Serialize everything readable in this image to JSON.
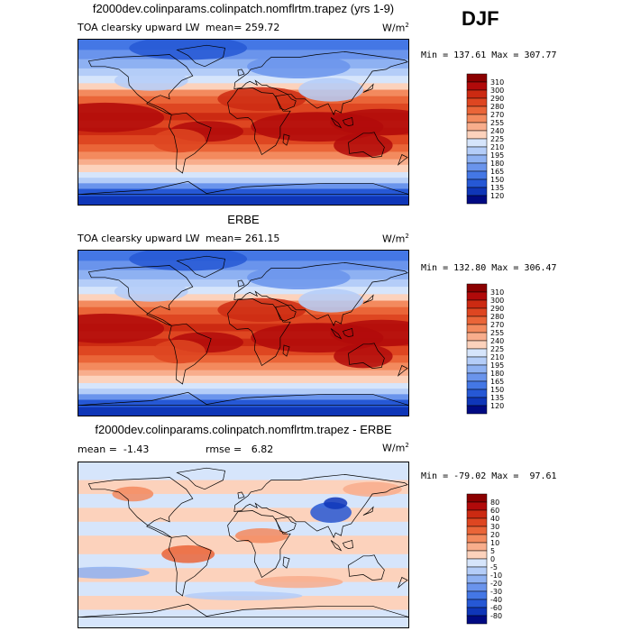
{
  "season": "DJF",
  "colors": {
    "warm": [
      "#8b0000",
      "#b10a0a",
      "#cc2a12",
      "#de4621",
      "#ea6538",
      "#f38a5e",
      "#f8ad8c",
      "#fcd2bc"
    ],
    "neutral": "#ffffff",
    "cool": [
      "#d6e5fb",
      "#b4cdf8",
      "#8eb1f2",
      "#6a94ec",
      "#4477e5",
      "#2658d5",
      "#0f36b8",
      "#000a83"
    ]
  },
  "panels": [
    {
      "title": "f2000dev.colinparams.colinpatch.nomflrtm.trapez (yrs 1-9)",
      "field": "TOA clearsky upward LW",
      "stat1_label": "mean=",
      "stat1_value": "259.72",
      "units": "W/m",
      "units_exp": "2",
      "min_label": "Min =",
      "min_value": "137.61",
      "max_label": "Max =",
      "max_value": "307.77",
      "colorbar": [
        "310",
        "300",
        "290",
        "280",
        "270",
        "255",
        "240",
        "225",
        "210",
        "195",
        "180",
        "165",
        "150",
        "135",
        "120"
      ],
      "map_type": "abs"
    },
    {
      "title": "ERBE",
      "field": "TOA clearsky upward LW",
      "stat1_label": "mean=",
      "stat1_value": "261.15",
      "units": "W/m",
      "units_exp": "2",
      "min_label": "Min =",
      "min_value": "132.80",
      "max_label": "Max =",
      "max_value": "306.47",
      "colorbar": [
        "310",
        "300",
        "290",
        "280",
        "270",
        "255",
        "240",
        "225",
        "210",
        "195",
        "180",
        "165",
        "150",
        "135",
        "120"
      ],
      "map_type": "abs"
    },
    {
      "title": "f2000dev.colinparams.colinpatch.nomflrtm.trapez - ERBE",
      "field": "",
      "stat1_label": "mean =",
      "stat1_value": "-1.43",
      "stat2_label": "rmse =",
      "stat2_value": "6.82",
      "units": "W/m",
      "units_exp": "2",
      "min_label": "Min =",
      "min_value": "-79.02",
      "max_label": "Max =",
      "max_value": "97.61",
      "colorbar": [
        "80",
        "60",
        "40",
        "30",
        "20",
        "10",
        "5",
        "0",
        "-5",
        "-10",
        "-20",
        "-30",
        "-40",
        "-60",
        "-80"
      ],
      "map_type": "diff"
    }
  ],
  "chart_data": [
    {
      "type": "heatmap",
      "title": "f2000dev.colinparams.colinpatch.nomflrtm.trapez (yrs 1-9)",
      "variable": "TOA clearsky upward LW",
      "units": "W/m2",
      "season": "DJF",
      "mean": 259.72,
      "min": 137.61,
      "max": 307.77,
      "levels": [
        120,
        135,
        150,
        165,
        180,
        195,
        210,
        225,
        240,
        255,
        270,
        280,
        290,
        300,
        310
      ]
    },
    {
      "type": "heatmap",
      "title": "ERBE",
      "variable": "TOA clearsky upward LW",
      "units": "W/m2",
      "season": "DJF",
      "mean": 261.15,
      "min": 132.8,
      "max": 306.47,
      "levels": [
        120,
        135,
        150,
        165,
        180,
        195,
        210,
        225,
        240,
        255,
        270,
        280,
        290,
        300,
        310
      ]
    },
    {
      "type": "heatmap",
      "title": "f2000dev.colinparams.colinpatch.nomflrtm.trapez - ERBE",
      "units": "W/m2",
      "season": "DJF",
      "mean": -1.43,
      "rmse": 6.82,
      "min": -79.02,
      "max": 97.61,
      "levels": [
        -80,
        -60,
        -40,
        -30,
        -20,
        -10,
        -5,
        0,
        5,
        10,
        20,
        30,
        40,
        60,
        80
      ]
    }
  ]
}
